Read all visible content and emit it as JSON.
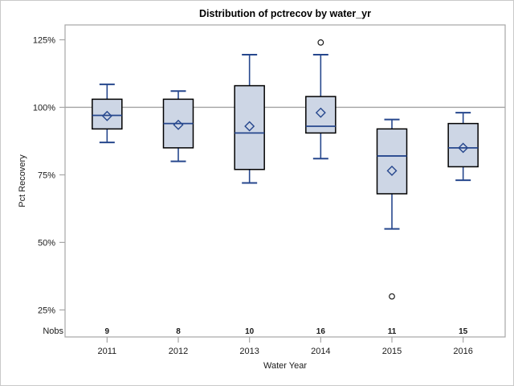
{
  "figure": {
    "title": "Distribution of pctrecov by water_yr",
    "y_axis_label": "Pct Recovery",
    "x_axis_label": "Water Year",
    "nobs_label": "Nobs"
  },
  "chart_data": {
    "type": "box",
    "title": "Distribution of pctrecov by water_yr",
    "xlabel": "Water Year",
    "ylabel": "Pct Recovery",
    "categories": [
      "2011",
      "2012",
      "2013",
      "2014",
      "2015",
      "2016"
    ],
    "nobs": [
      9,
      8,
      10,
      16,
      11,
      15
    ],
    "y_ticks": [
      25,
      50,
      75,
      100,
      125
    ],
    "y_tick_suffix": "%",
    "ylim": [
      15,
      130.5
    ],
    "reference_line": 100,
    "grid": false,
    "legend": "none",
    "series": [
      {
        "category": "2011",
        "whisker_low": 87,
        "q1": 92,
        "median": 97,
        "q3": 103,
        "whisker_high": 108.5,
        "mean": 96.8,
        "outliers": []
      },
      {
        "category": "2012",
        "whisker_low": 80,
        "q1": 85,
        "median": 94,
        "q3": 103,
        "whisker_high": 106,
        "mean": 93.5,
        "outliers": []
      },
      {
        "category": "2013",
        "whisker_low": 72,
        "q1": 77,
        "median": 90.5,
        "q3": 108,
        "whisker_high": 119.5,
        "mean": 93,
        "outliers": []
      },
      {
        "category": "2014",
        "whisker_low": 81,
        "q1": 90.5,
        "median": 93,
        "q3": 104,
        "whisker_high": 119.5,
        "mean": 98,
        "outliers": [
          124
        ]
      },
      {
        "category": "2015",
        "whisker_low": 55,
        "q1": 68,
        "median": 82,
        "q3": 92,
        "whisker_high": 95.5,
        "mean": 76.5,
        "outliers": [
          30
        ]
      },
      {
        "category": "2016",
        "whisker_low": 73,
        "q1": 78,
        "median": 85,
        "q3": 94,
        "whisker_high": 98,
        "mean": 85,
        "outliers": []
      }
    ],
    "colors": {
      "box_fill": "#cdd6e5",
      "box_border": "#000000",
      "whisker_line": "#26478d",
      "median_line": "#26478d",
      "mean_marker": "#26478d",
      "outlier_marker": "#1a1a1a",
      "reference_line": "#a3a3a3",
      "frame": "#a6a6a6",
      "text": "#1a1a1a"
    }
  }
}
